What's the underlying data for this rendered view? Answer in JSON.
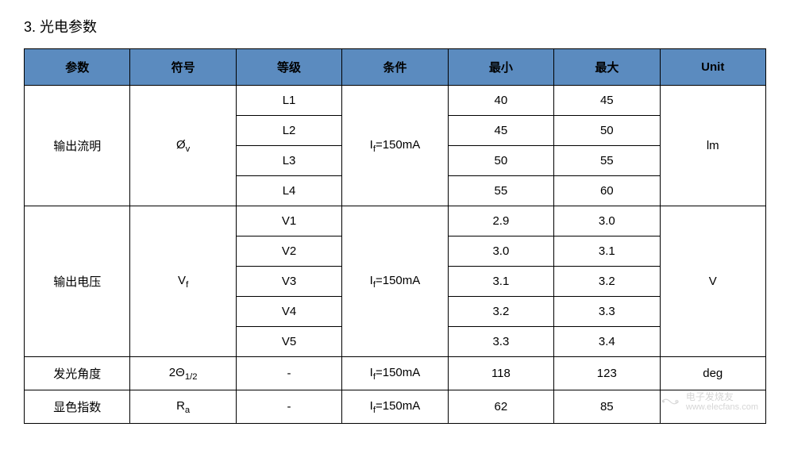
{
  "title": "3. 光电参数",
  "table": {
    "columns": [
      "参数",
      "符号",
      "等级",
      "条件",
      "最小",
      "最大",
      "Unit"
    ],
    "header_bg": "#5b8bbf",
    "border_color": "#000000",
    "groups": [
      {
        "param": "输出流明",
        "symbol": "Ø",
        "symbol_sub": "v",
        "condition": "I",
        "condition_sub": "f",
        "condition_rest": "=150mA",
        "unit": "lm",
        "rows": [
          {
            "grade": "L1",
            "min": "40",
            "max": "45"
          },
          {
            "grade": "L2",
            "min": "45",
            "max": "50"
          },
          {
            "grade": "L3",
            "min": "50",
            "max": "55"
          },
          {
            "grade": "L4",
            "min": "55",
            "max": "60"
          }
        ]
      },
      {
        "param": "输出电压",
        "symbol": "V",
        "symbol_sub": "f",
        "condition": "I",
        "condition_sub": "f",
        "condition_rest": "=150mA",
        "unit": "V",
        "rows": [
          {
            "grade": "V1",
            "min": "2.9",
            "max": "3.0"
          },
          {
            "grade": "V2",
            "min": "3.0",
            "max": "3.1"
          },
          {
            "grade": "V3",
            "min": "3.1",
            "max": "3.2"
          },
          {
            "grade": "V4",
            "min": "3.2",
            "max": "3.3"
          },
          {
            "grade": "V5",
            "min": "3.3",
            "max": "3.4"
          }
        ]
      },
      {
        "param": "发光角度",
        "symbol": "2Θ",
        "symbol_sub": "1/2",
        "condition": "I",
        "condition_sub": "f",
        "condition_rest": "=150mA",
        "unit": "deg",
        "rows": [
          {
            "grade": "-",
            "min": "118",
            "max": "123"
          }
        ]
      },
      {
        "param": "显色指数",
        "symbol": "R",
        "symbol_sub": "a",
        "condition": "I",
        "condition_sub": "f",
        "condition_rest": "=150mA",
        "unit": "",
        "rows": [
          {
            "grade": "-",
            "min": "62",
            "max": "85"
          }
        ]
      }
    ]
  },
  "watermark": {
    "cn": "电子发烧友",
    "url": "www.elecfans.com"
  }
}
